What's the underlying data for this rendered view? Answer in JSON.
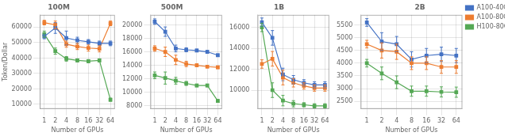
{
  "chart_data": [
    {
      "type": "line",
      "title": "100M",
      "xlabel": "Number of GPUs",
      "ylabel": "Token/Dollar",
      "log": "x",
      "grid": true,
      "marker": "square",
      "x": [
        1,
        2,
        4,
        8,
        16,
        32,
        64
      ],
      "xlim": [
        0.75,
        85
      ],
      "xticks": [
        1,
        2,
        4,
        8,
        16,
        32,
        64
      ],
      "ylim": [
        7000,
        68000
      ],
      "yticks": [
        10000,
        20000,
        30000,
        40000,
        50000,
        60000
      ],
      "series": [
        {
          "name": "A100-40GB",
          "color": "#4472c4",
          "values": [
            54000,
            59500,
            53000,
            51500,
            50500,
            49500,
            49500
          ],
          "errors": [
            1500,
            3500,
            4500,
            2000,
            1500,
            1500,
            1500
          ]
        },
        {
          "name": "A100-80GB",
          "color": "#ed7d31",
          "values": [
            63000,
            61500,
            49000,
            47500,
            46500,
            46000,
            62500
          ],
          "errors": [
            1500,
            2500,
            2000,
            2000,
            2000,
            2000,
            1500
          ]
        },
        {
          "name": "H100-80GB",
          "color": "#55a855",
          "values": [
            55500,
            44500,
            39500,
            38500,
            38000,
            38500,
            13000
          ],
          "errors": [
            2000,
            2000,
            1500,
            1000,
            1000,
            1000,
            1000
          ]
        }
      ]
    },
    {
      "type": "line",
      "title": "500M",
      "xlabel": "Number of GPUs",
      "log": "x",
      "grid": true,
      "marker": "square",
      "x": [
        1,
        2,
        4,
        8,
        16,
        32,
        64
      ],
      "xlim": [
        0.75,
        85
      ],
      "xticks": [
        1,
        2,
        4,
        8,
        16,
        32,
        64
      ],
      "ylim": [
        7500,
        21500
      ],
      "yticks": [
        8000,
        10000,
        12000,
        14000,
        16000,
        18000,
        20000
      ],
      "series": [
        {
          "name": "A100-40GB",
          "color": "#4472c4",
          "values": [
            20500,
            19000,
            16500,
            16300,
            16200,
            16000,
            15500
          ],
          "errors": [
            400,
            700,
            500,
            300,
            200,
            200,
            200
          ]
        },
        {
          "name": "A100-80GB",
          "color": "#ed7d31",
          "values": [
            16500,
            16000,
            14800,
            14200,
            14000,
            13800,
            13700
          ],
          "errors": [
            400,
            700,
            700,
            400,
            200,
            200,
            200
          ]
        },
        {
          "name": "H100-80GB",
          "color": "#55a855",
          "values": [
            12500,
            12100,
            11700,
            11300,
            11000,
            11000,
            8700
          ],
          "errors": [
            500,
            900,
            500,
            300,
            200,
            200,
            200
          ]
        }
      ]
    },
    {
      "type": "line",
      "title": "1B",
      "xlabel": "Number of GPUs",
      "log": "x",
      "grid": true,
      "marker": "square",
      "x": [
        1,
        2,
        4,
        8,
        16,
        32,
        64
      ],
      "xlim": [
        0.75,
        85
      ],
      "xticks": [
        1,
        2,
        4,
        8,
        16,
        32,
        64
      ],
      "ylim": [
        8200,
        17200
      ],
      "yticks": [
        10000,
        12000,
        14000,
        16000
      ],
      "series": [
        {
          "name": "A100-40GB",
          "color": "#4472c4",
          "values": [
            16500,
            15000,
            11500,
            11000,
            10700,
            10500,
            10500
          ],
          "errors": [
            400,
            700,
            600,
            400,
            300,
            300,
            300
          ]
        },
        {
          "name": "A100-80GB",
          "color": "#ed7d31",
          "values": [
            12500,
            13000,
            11200,
            10700,
            10400,
            10200,
            10200
          ],
          "errors": [
            400,
            700,
            700,
            400,
            300,
            300,
            300
          ]
        },
        {
          "name": "H100-80GB",
          "color": "#55a855",
          "values": [
            16000,
            10000,
            9000,
            8700,
            8600,
            8500,
            8500
          ],
          "errors": [
            400,
            700,
            500,
            300,
            200,
            200,
            200
          ]
        }
      ]
    },
    {
      "type": "line",
      "title": "2B",
      "xlabel": "Number of GPUs",
      "log": "x",
      "grid": true,
      "marker": "square",
      "legend": "upper right",
      "x": [
        1,
        2,
        4,
        8,
        16,
        32,
        64
      ],
      "xlim": [
        0.75,
        85
      ],
      "xticks": [
        1,
        2,
        4,
        8,
        16,
        32,
        64
      ],
      "ylim": [
        2200,
        5900
      ],
      "yticks": [
        2500,
        3000,
        3500,
        4000,
        4500,
        5000,
        5500
      ],
      "series": [
        {
          "name": "A100-40GB",
          "color": "#4472c4",
          "values": [
            5600,
            4850,
            4750,
            4150,
            4300,
            4350,
            4300
          ],
          "errors": [
            150,
            350,
            300,
            300,
            280,
            280,
            280
          ]
        },
        {
          "name": "A100-80GB",
          "color": "#ed7d31",
          "values": [
            4750,
            4500,
            4450,
            4000,
            4000,
            3850,
            3850
          ],
          "errors": [
            150,
            300,
            300,
            250,
            250,
            250,
            250
          ]
        },
        {
          "name": "H100-80GB",
          "color": "#55a855",
          "values": [
            4000,
            3600,
            3250,
            2900,
            2900,
            2870,
            2860
          ],
          "errors": [
            150,
            250,
            250,
            200,
            200,
            200,
            200
          ]
        }
      ]
    }
  ]
}
